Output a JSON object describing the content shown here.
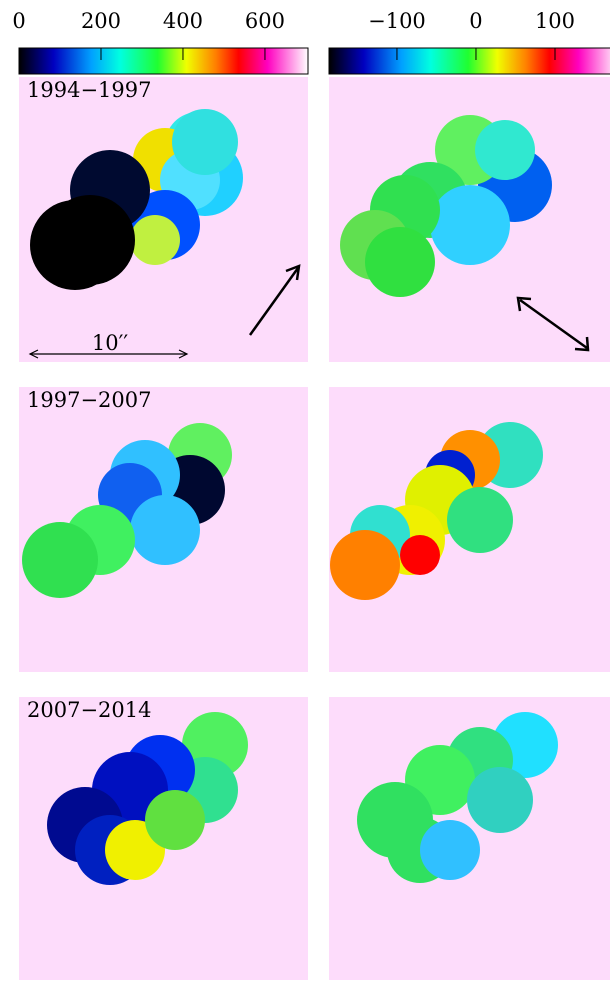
{
  "colorbars": [
    {
      "range": [
        0,
        705
      ],
      "ticks": [
        0,
        200,
        400,
        600
      ]
    },
    {
      "range": [
        -186,
        181
      ],
      "ticks": [
        {
          "value": -100,
          "label": "−100"
        },
        0,
        100
      ]
    }
  ],
  "panels": [
    {
      "label": "1994−1997",
      "scale_bar": "10′′"
    },
    {
      "label": "1997−2007"
    },
    {
      "label": "2007−2014"
    }
  ]
}
